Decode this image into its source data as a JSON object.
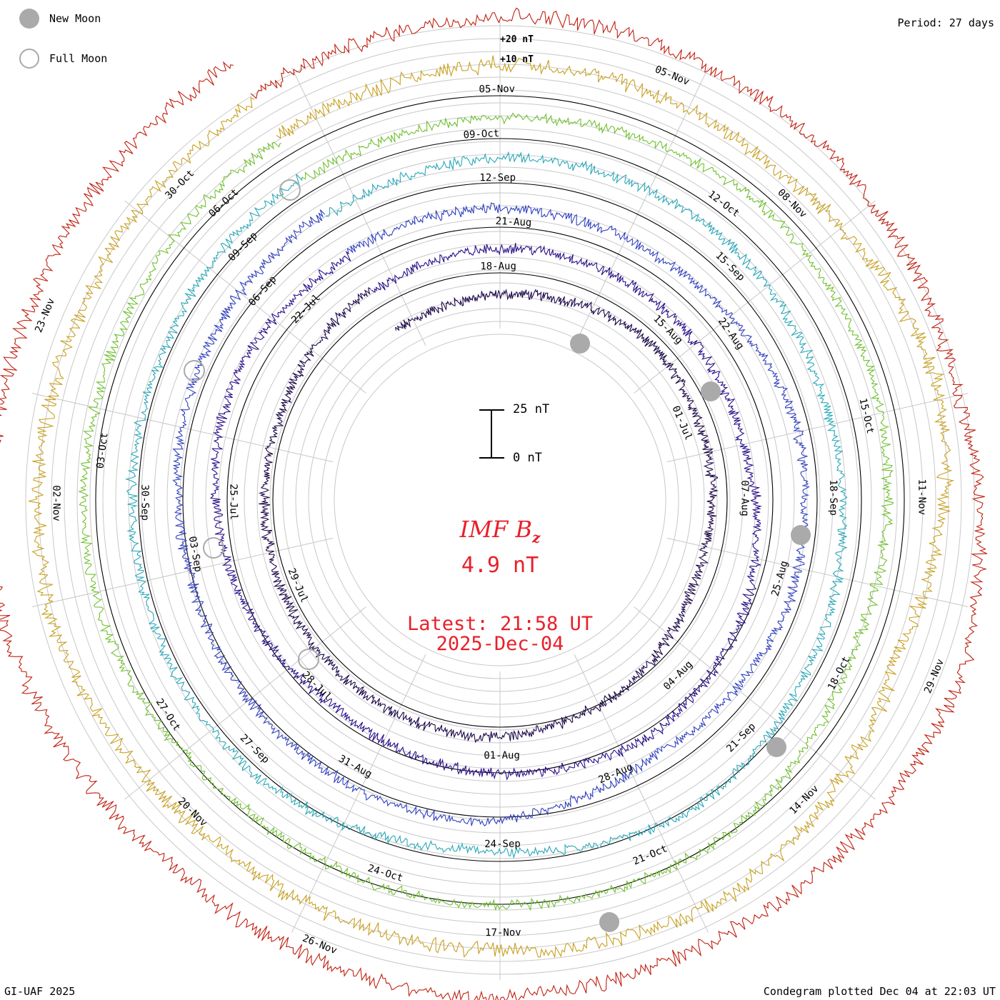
{
  "header": {
    "period": "Period: 27 days"
  },
  "legend": {
    "new_moon": "New Moon",
    "full_moon": "Full Moon"
  },
  "center": {
    "title_main": "IMF B",
    "title_sub": "z",
    "value": "4.9 nT",
    "latest": "Latest: 21:58 UT",
    "date": "2025-Dec-04"
  },
  "scale": {
    "top_label": "25 nT",
    "bottom_label": "0 nT"
  },
  "ring_labels": {
    "plus20": "+20 nT",
    "plus10": "+10 nT"
  },
  "footer": {
    "left": "GI-UAF 2025",
    "right": "Condegram plotted Dec 04 at 22:03 UT"
  },
  "colors": {
    "accent_text": "#e8202a",
    "grid": "#bbbbbb",
    "moon": "#aaaaaa"
  },
  "chart_data": {
    "type": "line",
    "subtype": "spiral condegram (polar time series)",
    "period_days": 27,
    "units": "nT",
    "rotations": [
      {
        "name": "rotation-1",
        "color": "#1e0a4a",
        "date_labels": [
          "01-Jul",
          "29-Jul"
        ],
        "approx_bz": [
          1,
          3,
          6,
          2,
          -2,
          4,
          8,
          5,
          2,
          -1,
          3
        ]
      },
      {
        "name": "rotation-2",
        "color": "#2a0f8a",
        "date_labels": [
          "18-Aug",
          "15-Aug",
          "07-Aug",
          "04-Aug",
          "01-Aug",
          "28-Jul",
          "25-Jul",
          "22-Jul"
        ],
        "approx_bz": [
          2,
          4,
          1,
          -3,
          5,
          9,
          3,
          -4,
          2,
          6,
          1
        ]
      },
      {
        "name": "rotation-3",
        "color": "#3040c0",
        "date_labels": [
          "21-Aug",
          "22-Aug",
          "25-Aug",
          "28-Aug",
          "31-Aug",
          "03-Sep",
          "06-Sep"
        ],
        "approx_bz": [
          3,
          1,
          -2,
          4,
          2,
          -5,
          6,
          3,
          -1,
          2,
          4
        ]
      },
      {
        "name": "rotation-4",
        "color": "#2aa8b8",
        "date_labels": [
          "12-Sep",
          "15-Sep",
          "18-Sep",
          "21-Sep",
          "24-Sep",
          "27-Sep",
          "30-Sep",
          "09-Sep"
        ],
        "approx_bz": [
          2,
          5,
          3,
          -2,
          1,
          7,
          -3,
          4,
          2,
          -1,
          3
        ]
      },
      {
        "name": "rotation-5",
        "color": "#70c030",
        "date_labels": [
          "09-Oct",
          "12-Oct",
          "15-Oct",
          "18-Oct",
          "21-Oct",
          "24-Oct",
          "27-Oct",
          "03-Oct",
          "06-Oct"
        ],
        "approx_bz": [
          1,
          3,
          6,
          2,
          -4,
          5,
          3,
          -2,
          4,
          1,
          2
        ]
      },
      {
        "name": "rotation-6",
        "color": "#c8a020",
        "date_labels": [
          "05-Nov",
          "08-Nov",
          "11-Nov",
          "14-Nov",
          "17-Nov",
          "20-Nov",
          "02-Nov",
          "30-Oct"
        ],
        "approx_bz": [
          4,
          8,
          2,
          12,
          -5,
          9,
          3,
          -2,
          6,
          1,
          3
        ]
      },
      {
        "name": "rotation-7",
        "color": "#c02010",
        "date_labels": [
          "05-Nov",
          "29-Nov",
          "26-Nov",
          "23-Nov"
        ],
        "approx_bz": [
          6,
          10,
          4,
          -3,
          7,
          2,
          5,
          -1,
          8,
          3,
          4
        ]
      }
    ],
    "new_moon_markers": 5,
    "full_moon_markers": 4,
    "grid": true
  }
}
